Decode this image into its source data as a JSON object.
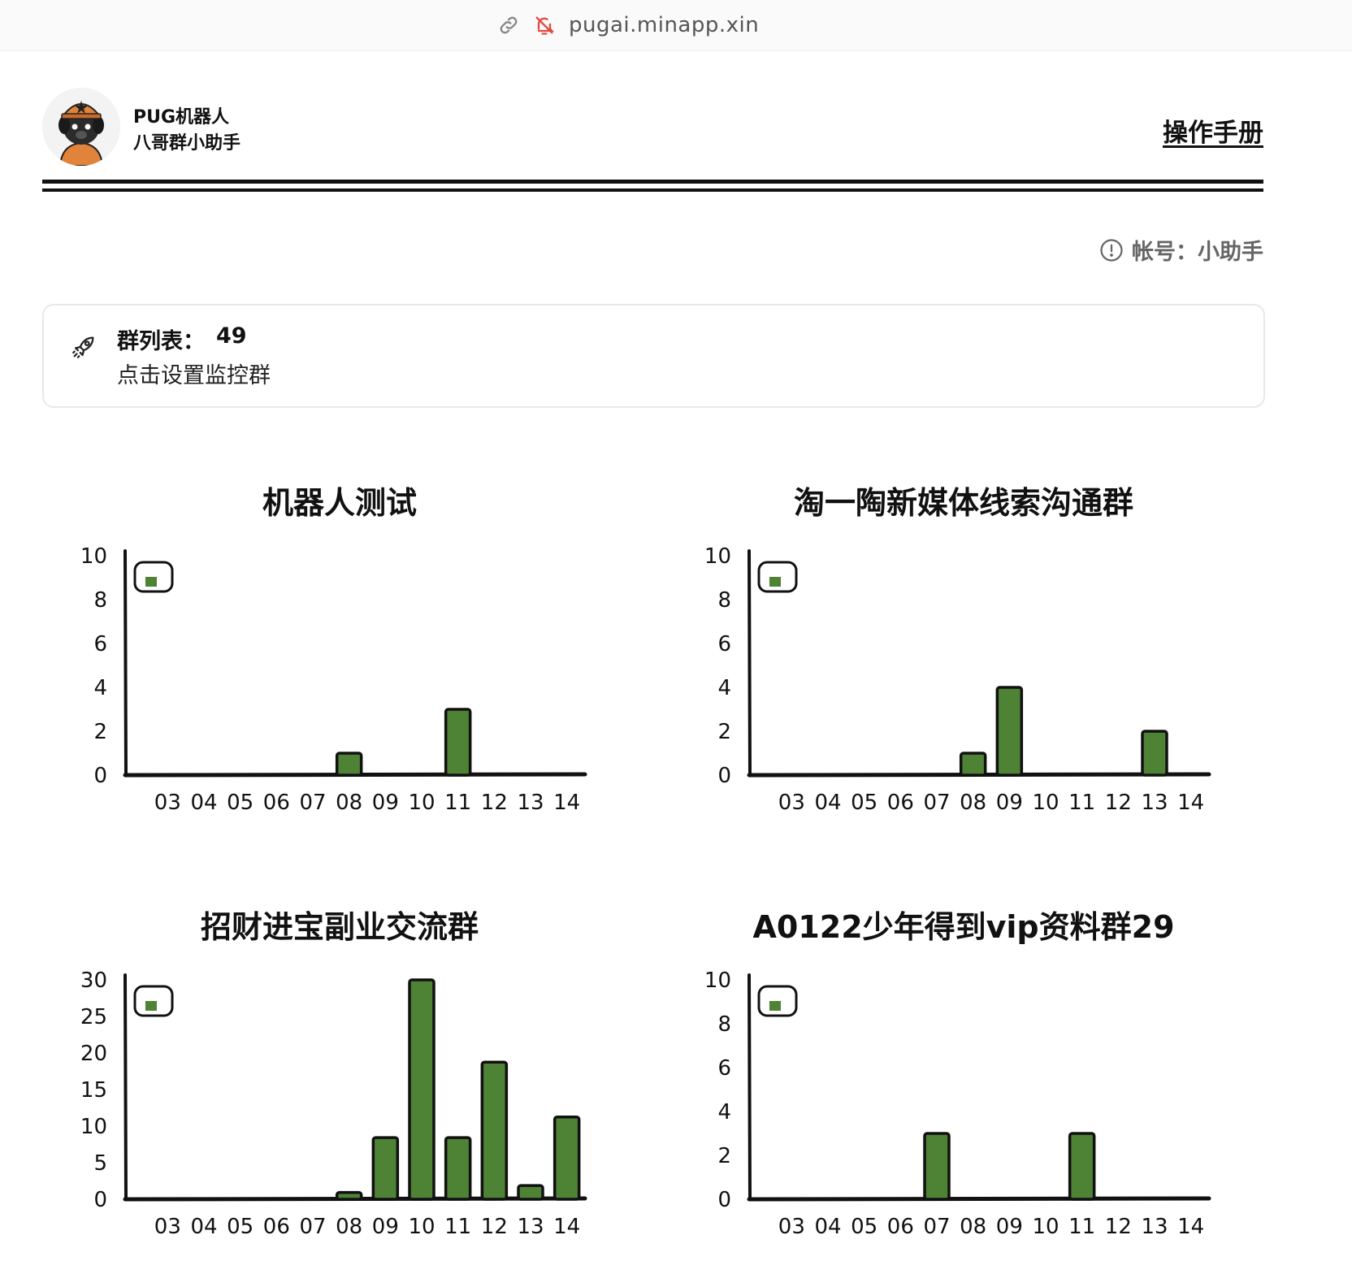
{
  "browser": {
    "url": "pugai.minapp.xin",
    "link_icon": "link-icon",
    "notification_icon": "notification-off-icon"
  },
  "header": {
    "brand_line1": "PUG机器人",
    "brand_line2": "八哥群小助手",
    "manual_link": "操作手册"
  },
  "account": {
    "label": "帐号：小助手",
    "icon": "info-circle-icon"
  },
  "group_card": {
    "list_label": "群列表：",
    "list_count": "49",
    "action": "点击设置监控群",
    "icon": "rocket-icon"
  },
  "colors": {
    "bar": "#4e8235",
    "axis": "#111111",
    "legend_swatch": "#4e8235"
  },
  "chart_data": [
    {
      "type": "bar",
      "title": "机器人测试",
      "categories": [
        "03",
        "04",
        "05",
        "06",
        "07",
        "08",
        "09",
        "10",
        "11",
        "12",
        "13",
        "14"
      ],
      "values": [
        0,
        0,
        0,
        0,
        0,
        1,
        0,
        0,
        3,
        0,
        0,
        0
      ],
      "ylim": [
        0,
        10
      ],
      "yticks": [
        "10",
        "8",
        "6",
        "4",
        "2",
        "0"
      ],
      "legend": "top-left"
    },
    {
      "type": "bar",
      "title": "淘一陶新媒体线索沟通群",
      "categories": [
        "03",
        "04",
        "05",
        "06",
        "07",
        "08",
        "09",
        "10",
        "11",
        "12",
        "13",
        "14"
      ],
      "values": [
        0,
        0,
        0,
        0,
        0,
        1,
        4,
        0,
        0,
        0,
        2,
        0
      ],
      "ylim": [
        0,
        10
      ],
      "yticks": [
        "10",
        "8",
        "6",
        "4",
        "2",
        "0"
      ],
      "legend": "top-left"
    },
    {
      "type": "bar",
      "title": "招财进宝副业交流群",
      "categories": [
        "03",
        "04",
        "05",
        "06",
        "07",
        "08",
        "09",
        "10",
        "11",
        "12",
        "13",
        "14"
      ],
      "values": [
        0,
        0,
        0,
        0,
        0,
        1,
        9,
        32,
        9,
        20,
        2,
        12
      ],
      "ylim": [
        0,
        32
      ],
      "yticks": [
        "30",
        "25",
        "20",
        "15",
        "10",
        "5",
        "0"
      ],
      "legend": "top-left"
    },
    {
      "type": "bar",
      "title": "A0122少年得到vip资料群29",
      "categories": [
        "03",
        "04",
        "05",
        "06",
        "07",
        "08",
        "09",
        "10",
        "11",
        "12",
        "13",
        "14"
      ],
      "values": [
        0,
        0,
        0,
        0,
        3,
        0,
        0,
        0,
        3,
        0,
        0,
        0
      ],
      "ylim": [
        0,
        10
      ],
      "yticks": [
        "10",
        "8",
        "6",
        "4",
        "2",
        "0"
      ],
      "legend": "top-left"
    }
  ]
}
